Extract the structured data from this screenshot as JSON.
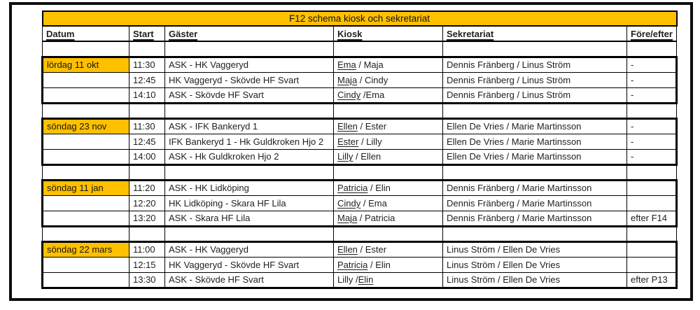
{
  "title": "F12 schema kiosk och sekretariat",
  "columns": [
    "Datum",
    "Start",
    "Gäster",
    "Kiosk",
    "Sekretariat",
    "Före/efter"
  ],
  "colors": {
    "accent": "#FFC000",
    "border": "#000000"
  },
  "blocks": [
    {
      "date": "lördag 11 okt",
      "games": [
        {
          "start": "11:30",
          "guests": "ASK - HK Vaggeryd",
          "kiosk": [
            [
              "Ema",
              true
            ],
            [
              " / Maja",
              false
            ]
          ],
          "secretariat": "Dennis Fränberg / Linus Ström",
          "before_after": "-"
        },
        {
          "start": "12:45",
          "guests": "HK Vaggeryd - Skövde HF Svart",
          "kiosk": [
            [
              "Maja",
              true
            ],
            [
              " / Cindy",
              false
            ]
          ],
          "secretariat": "Dennis Fränberg / Linus Ström",
          "before_after": "-"
        },
        {
          "start": "14:10",
          "guests": "ASK - Skövde HF Svart",
          "kiosk": [
            [
              "Cindy",
              true
            ],
            [
              " /Ema",
              false
            ]
          ],
          "secretariat": "Dennis Fränberg / Linus Ström",
          "before_after": "-"
        }
      ]
    },
    {
      "date": "söndag 23 nov",
      "games": [
        {
          "start": "11:30",
          "guests": "ASK - IFK Bankeryd 1",
          "kiosk": [
            [
              "Ellen",
              true
            ],
            [
              " / Ester",
              false
            ]
          ],
          "secretariat": "Ellen De Vries / Marie Martinsson",
          "before_after": "-"
        },
        {
          "start": "12:45",
          "guests": "IFK Bankeryd 1 - Hk Guldkroken Hjo 2",
          "kiosk": [
            [
              "Ester",
              true
            ],
            [
              " / Lilly",
              false
            ]
          ],
          "secretariat": "Ellen De Vries / Marie Martinsson",
          "before_after": "-"
        },
        {
          "start": "14:00",
          "guests": "ASK - Hk Guldkroken Hjo 2",
          "kiosk": [
            [
              "Lilly",
              true
            ],
            [
              " / Ellen",
              false
            ]
          ],
          "secretariat": "Ellen De Vries / Marie Martinsson",
          "before_after": "-"
        }
      ]
    },
    {
      "date": "söndag 11 jan",
      "games": [
        {
          "start": "11:20",
          "guests": "ASK - HK Lidköping",
          "kiosk": [
            [
              "Patricia",
              true
            ],
            [
              " / Elin",
              false
            ]
          ],
          "secretariat": "Dennis Fränberg / Marie Martinsson",
          "before_after": ""
        },
        {
          "start": "12:20",
          "guests": "HK Lidköping - Skara HF Lila",
          "kiosk": [
            [
              "Cindy",
              true
            ],
            [
              " / Ema",
              false
            ]
          ],
          "secretariat": "Dennis Fränberg / Marie Martinsson",
          "before_after": ""
        },
        {
          "start": "13:20",
          "guests": "ASK - Skara HF Lila",
          "kiosk": [
            [
              "Maja",
              true
            ],
            [
              " / Patricia",
              false
            ]
          ],
          "secretariat": "Dennis Fränberg / Marie Martinsson",
          "before_after": "efter F14"
        }
      ]
    },
    {
      "date": "söndag 22 mars",
      "games": [
        {
          "start": "11:00",
          "guests": "ASK - HK Vaggeryd",
          "kiosk": [
            [
              "Ellen",
              true
            ],
            [
              " / Ester",
              false
            ]
          ],
          "secretariat": "Linus Ström / Ellen De Vries",
          "before_after": ""
        },
        {
          "start": "12:15",
          "guests": "HK Vaggeryd - Skövde HF Svart",
          "kiosk": [
            [
              "Patricia",
              true
            ],
            [
              " / Elin",
              false
            ]
          ],
          "secretariat": "Linus Ström / Ellen De Vries",
          "before_after": ""
        },
        {
          "start": "13:30",
          "guests": "ASK - Skövde HF Svart",
          "kiosk": [
            [
              "Lilly /",
              false
            ],
            [
              "Elin",
              true
            ]
          ],
          "secretariat": "Linus Ström / Ellen De Vries",
          "before_after": "efter P13"
        }
      ]
    }
  ]
}
